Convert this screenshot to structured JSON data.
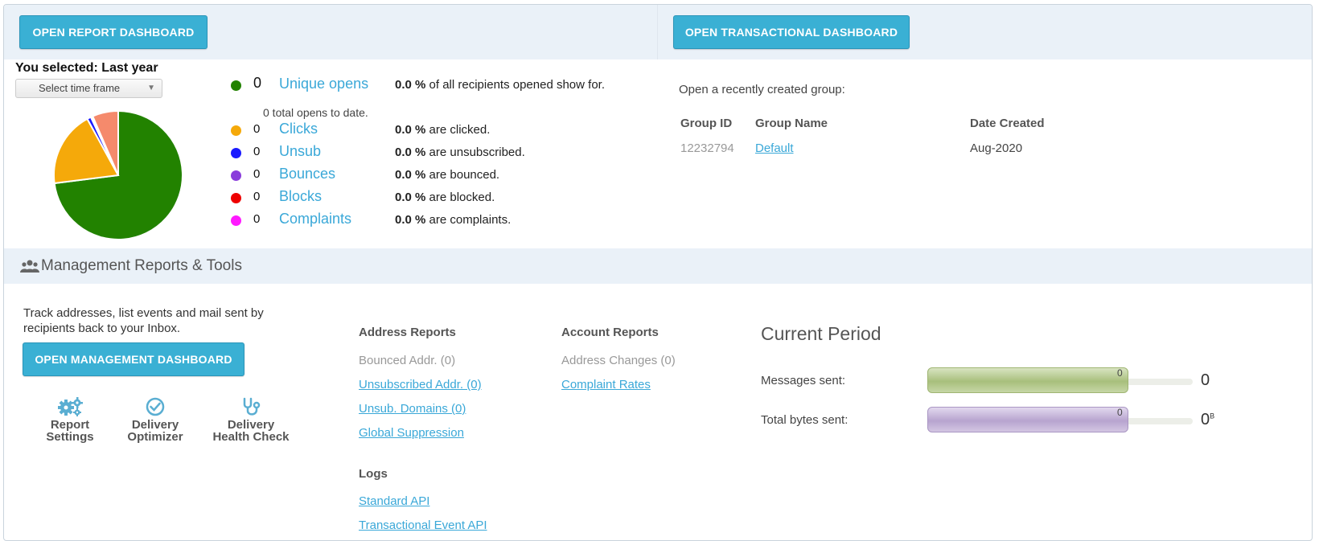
{
  "top": {
    "report_button": "OPEN REPORT DASHBOARD",
    "transactional_button": "OPEN TRANSACTIONAL DASHBOARD"
  },
  "selection": {
    "label": "You selected: Last year",
    "time_frame_placeholder": "Select time frame"
  },
  "pie": {
    "slices": [
      {
        "name": "Unique opens",
        "percent": 73,
        "color": "#228200"
      },
      {
        "name": "Clicks",
        "percent": 19,
        "color": "#f5a90a"
      },
      {
        "name": "Unsub",
        "percent": 1,
        "color": "#1a1aff"
      },
      {
        "name": "Bounces",
        "percent": 0.5,
        "color": "#ffffff"
      },
      {
        "name": "Complaints",
        "percent": 6.5,
        "color": "#f58a6c"
      }
    ]
  },
  "stats": [
    {
      "count": "0",
      "label": "Unique opens",
      "percent": "0.0 %",
      "desc": "of all recipients opened show for.",
      "color": "#228200"
    },
    {
      "count": "0",
      "label": "Clicks",
      "percent": "0.0 %",
      "desc": "are clicked.",
      "color": "#f5a90a"
    },
    {
      "count": "0",
      "label": "Unsub",
      "percent": "0.0 %",
      "desc": "are unsubscribed.",
      "color": "#1a1aff"
    },
    {
      "count": "0",
      "label": "Bounces",
      "percent": "0.0 %",
      "desc": "are bounced.",
      "color": "#8a3cdb"
    },
    {
      "count": "0",
      "label": "Blocks",
      "percent": "0.0 %",
      "desc": "are blocked.",
      "color": "#ee0000"
    },
    {
      "count": "0",
      "label": "Complaints",
      "percent": "0.0 %",
      "desc": "are complaints.",
      "color": "#ff19ff"
    }
  ],
  "total_opens": "0 total opens to date.",
  "recent_groups": {
    "title": "Open a recently created group:",
    "headers": [
      "Group ID",
      "Group Name",
      "Date Created"
    ],
    "rows": [
      {
        "id": "12232794",
        "name": "Default",
        "date": "Aug-2020"
      }
    ]
  },
  "management": {
    "title": "Management Reports & Tools",
    "description": "Track addresses, list events and mail sent by recipients back to your Inbox.",
    "button": "OPEN MANAGEMENT DASHBOARD",
    "tools": [
      {
        "line1": "Report",
        "line2": "Settings",
        "icon": "gears-icon"
      },
      {
        "line1": "Delivery",
        "line2": "Optimizer",
        "icon": "check-circle-icon"
      },
      {
        "line1": "Delivery",
        "line2": "Health Check",
        "icon": "stethoscope-icon"
      }
    ]
  },
  "address_reports": {
    "title": "Address Reports",
    "items": [
      "Bounced Addr. (0)",
      "Unsubscribed Addr. (0)",
      "Unsub. Domains (0)",
      "Global Suppression"
    ]
  },
  "logs": {
    "title": "Logs",
    "items": [
      "Standard API",
      "Transactional Event API"
    ]
  },
  "account_reports": {
    "title": "Account Reports",
    "items": [
      "Address Changes (0)",
      "Complaint Rates"
    ]
  },
  "current_period": {
    "title": "Current Period",
    "messages_label": "Messages sent:",
    "messages_bar_value": "0",
    "messages_value": "0",
    "bytes_label": "Total bytes sent:",
    "bytes_bar_value": "0",
    "bytes_value": "0",
    "bytes_unit": "B"
  }
}
